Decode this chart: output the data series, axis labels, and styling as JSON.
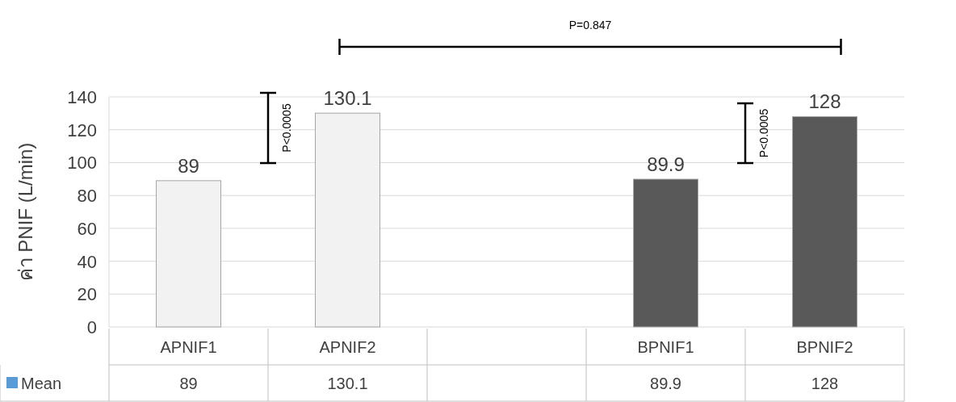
{
  "chart_data": {
    "type": "bar",
    "ylabel": "ค่า PNIF (L/min)",
    "categories": [
      "APNIF1",
      "APNIF2",
      null,
      "BPNIF1",
      "BPNIF2"
    ],
    "series": [
      {
        "name": "Mean",
        "color": "#5b9bd5",
        "colors": [
          "#f2f2f2",
          "#f2f2f2",
          null,
          "#595959",
          "#595959"
        ],
        "values": [
          89,
          130.1,
          null,
          89.9,
          128
        ]
      }
    ],
    "ylim": [
      0,
      140
    ],
    "yticks": [
      0,
      20,
      40,
      60,
      80,
      100,
      120,
      140
    ],
    "grid": "y",
    "data_labels": true,
    "legend": "bottom left",
    "annotations": [
      "P=0.847",
      "P<0.0005",
      "P<0.0005",
      {
        "text": "89",
        "x": "APNIF1",
        "y": 89
      },
      {
        "text": "130.1",
        "x": "APNIF2",
        "y": 130.1
      },
      {
        "text": "89.9",
        "x": "BPNIF1",
        "y": 89.9
      },
      {
        "text": "128",
        "x": "BPNIF2",
        "y": 128
      }
    ]
  }
}
